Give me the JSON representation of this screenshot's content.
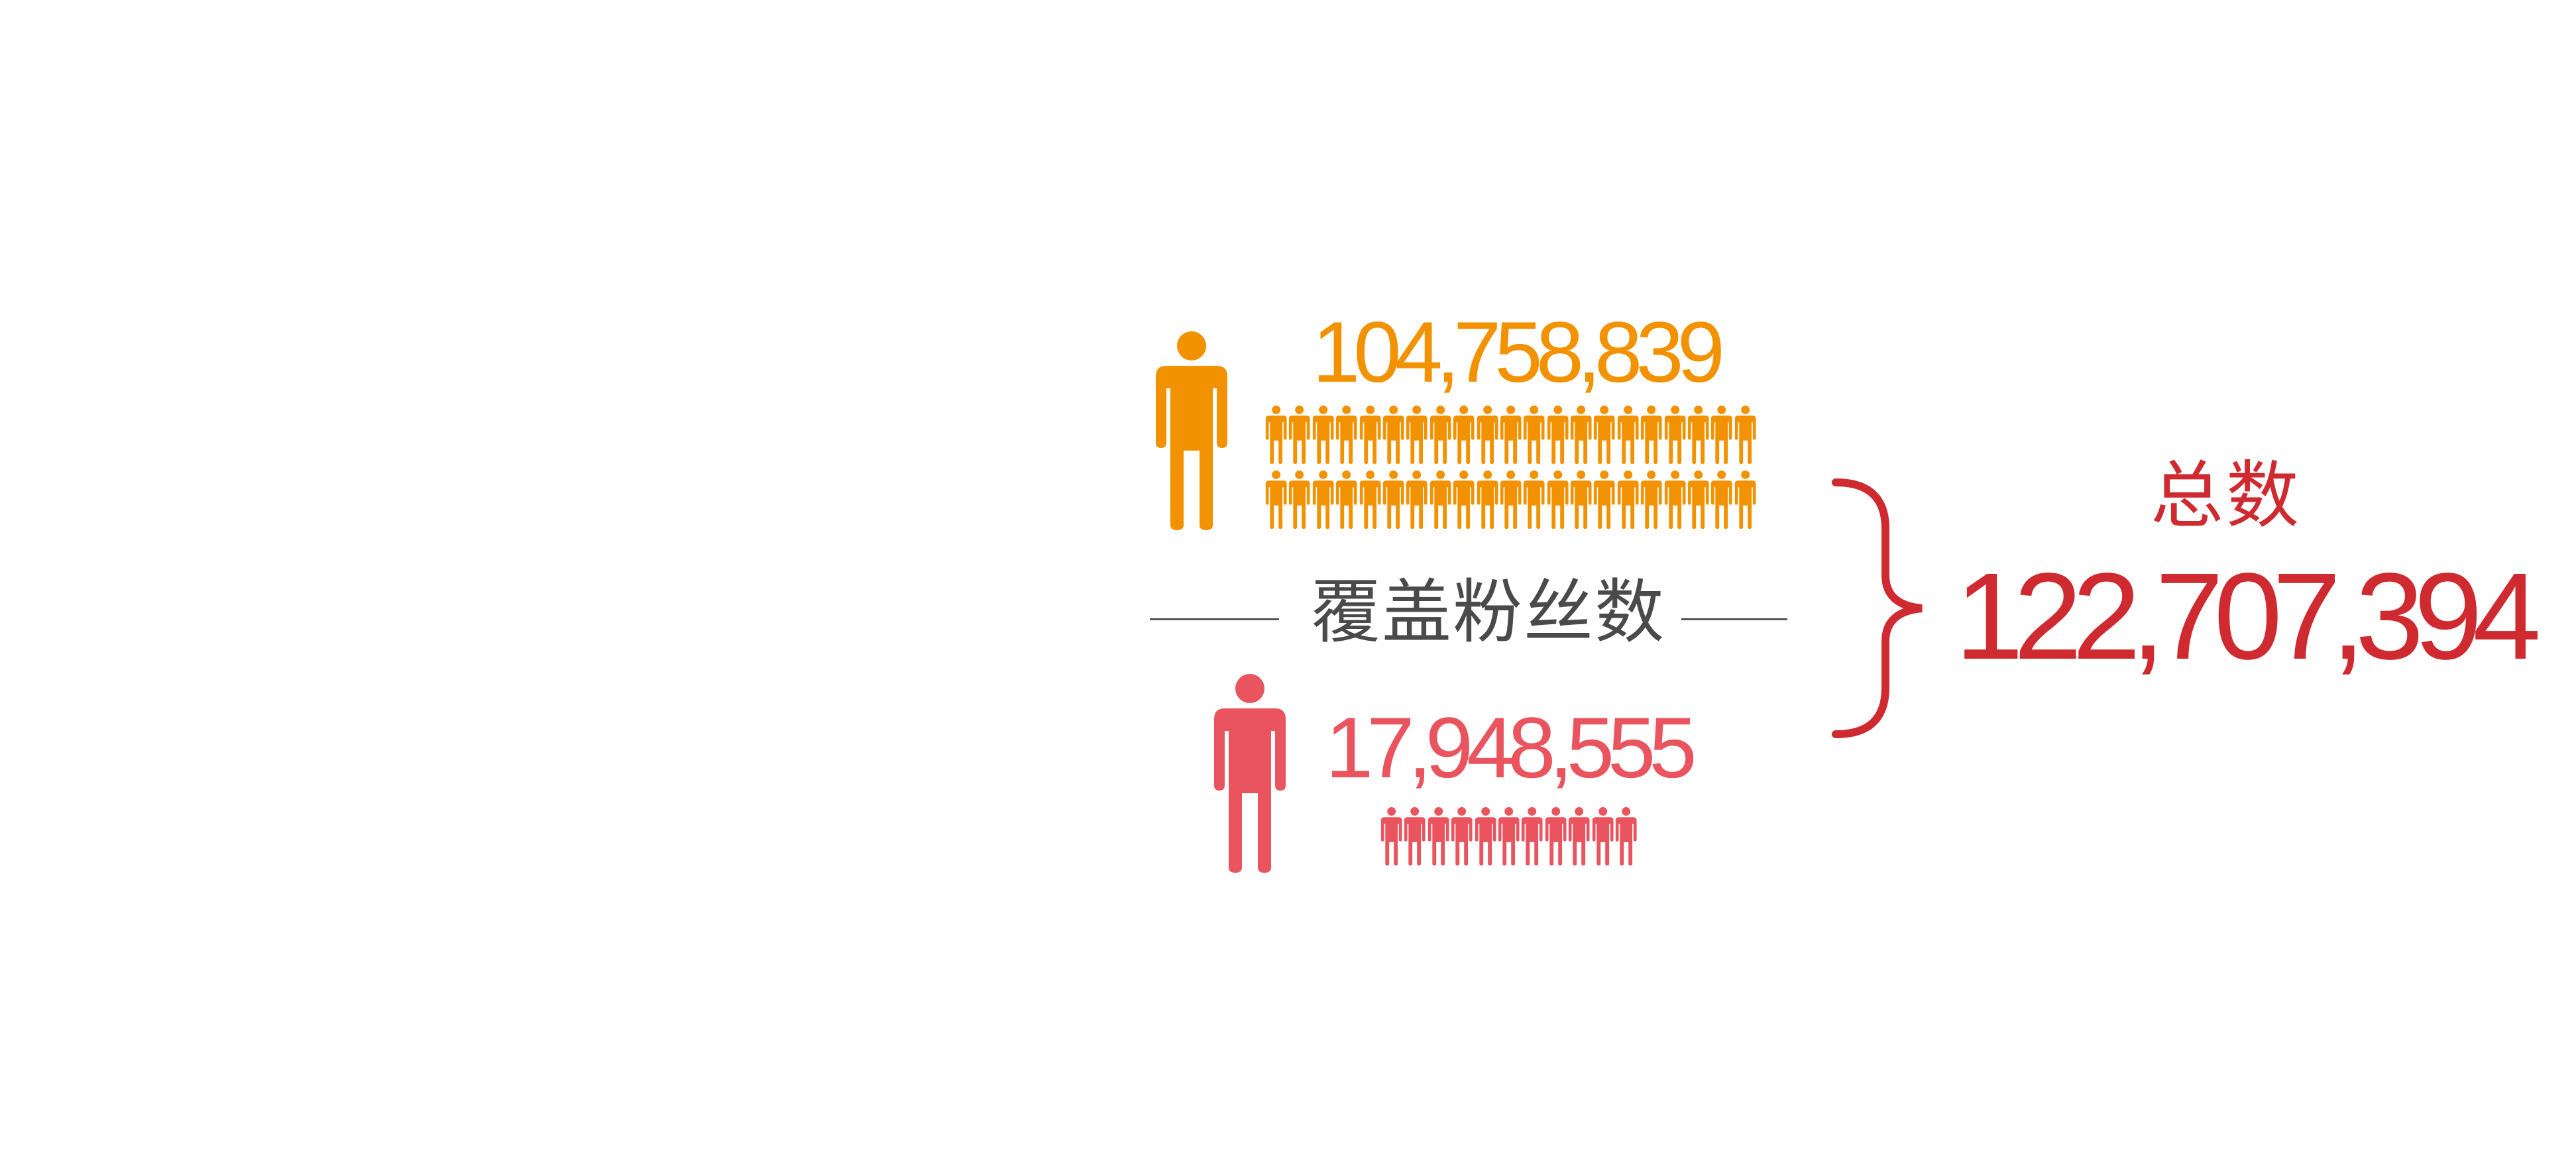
{
  "colors": {
    "orange": "#f29200",
    "pink": "#e9545f",
    "total": "#cf2a2f",
    "text_gray": "#4a4a4a"
  },
  "orange_group": {
    "count": "104,758,839",
    "icon": "person-icon",
    "mini_rows": 2,
    "mini_per_row": 21
  },
  "divider": {
    "label": "覆盖粉丝数"
  },
  "pink_group": {
    "count": "17,948,555",
    "icon": "person-icon",
    "mini_rows": 1,
    "mini_per_row": 11
  },
  "total": {
    "label": "总数",
    "value": "122,707,394",
    "icon": "curly-brace-icon"
  }
}
